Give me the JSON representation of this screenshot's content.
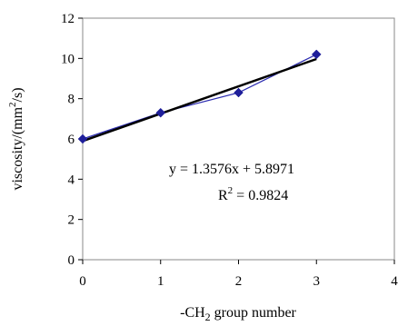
{
  "chart_data": {
    "type": "scatter",
    "x": [
      0,
      1,
      2,
      3
    ],
    "series": [
      {
        "values": [
          6.0,
          7.3,
          8.3,
          10.2
        ],
        "color": "#2b2bb0",
        "marker": "diamond",
        "line": "connected"
      }
    ],
    "trendline": {
      "type": "linear",
      "slope": 1.3576,
      "intercept": 5.8971,
      "x_range": [
        0,
        3
      ],
      "color": "#000000",
      "equation_label": "y = 1.3576x + 5.8971",
      "r2_label": "R",
      "r2_exponent": "2",
      "r2_value": " = 0.9824"
    },
    "xlabel": "-CH",
    "xlabel_sub": "2",
    "xlabel_rest": " group number",
    "ylabel": "viscosity/(mm",
    "ylabel_sup": "2",
    "ylabel_rest": "/s)",
    "xlim": [
      0,
      4
    ],
    "ylim": [
      0,
      12
    ],
    "xticks": [
      "0",
      "1",
      "2",
      "3",
      "4"
    ],
    "yticks": [
      "0",
      "2",
      "4",
      "6",
      "8",
      "10",
      "12"
    ],
    "grid": false,
    "legend": false
  }
}
